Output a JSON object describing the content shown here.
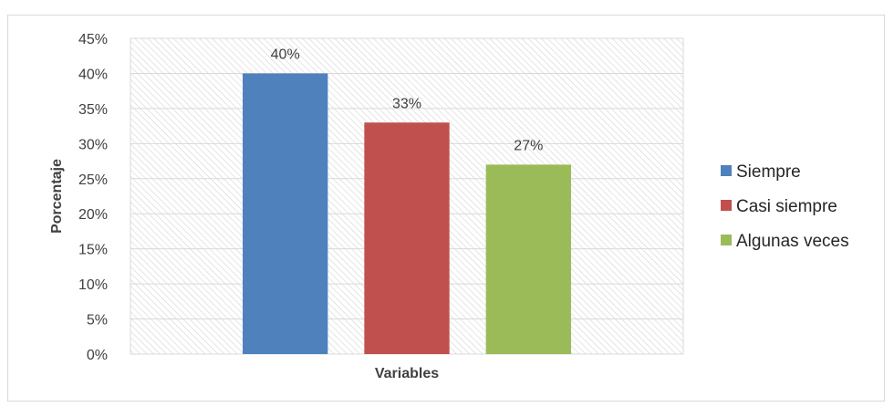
{
  "chart_data": {
    "type": "bar",
    "xlabel": "Variables",
    "ylabel": "Porcentaje",
    "ylim": [
      0,
      45
    ],
    "ytick_step": 5,
    "yticks": [
      "0%",
      "5%",
      "10%",
      "15%",
      "20%",
      "25%",
      "30%",
      "35%",
      "40%",
      "45%"
    ],
    "grid": true,
    "legend_position": "right",
    "series": [
      {
        "name": "Siempre",
        "value": 40,
        "label": "40%",
        "color": "#4f81bd"
      },
      {
        "name": "Casi siempre",
        "value": 33,
        "label": "33%",
        "color": "#c0504d"
      },
      {
        "name": "Algunas veces",
        "value": 27,
        "label": "27%",
        "color": "#9bbb59"
      }
    ]
  }
}
